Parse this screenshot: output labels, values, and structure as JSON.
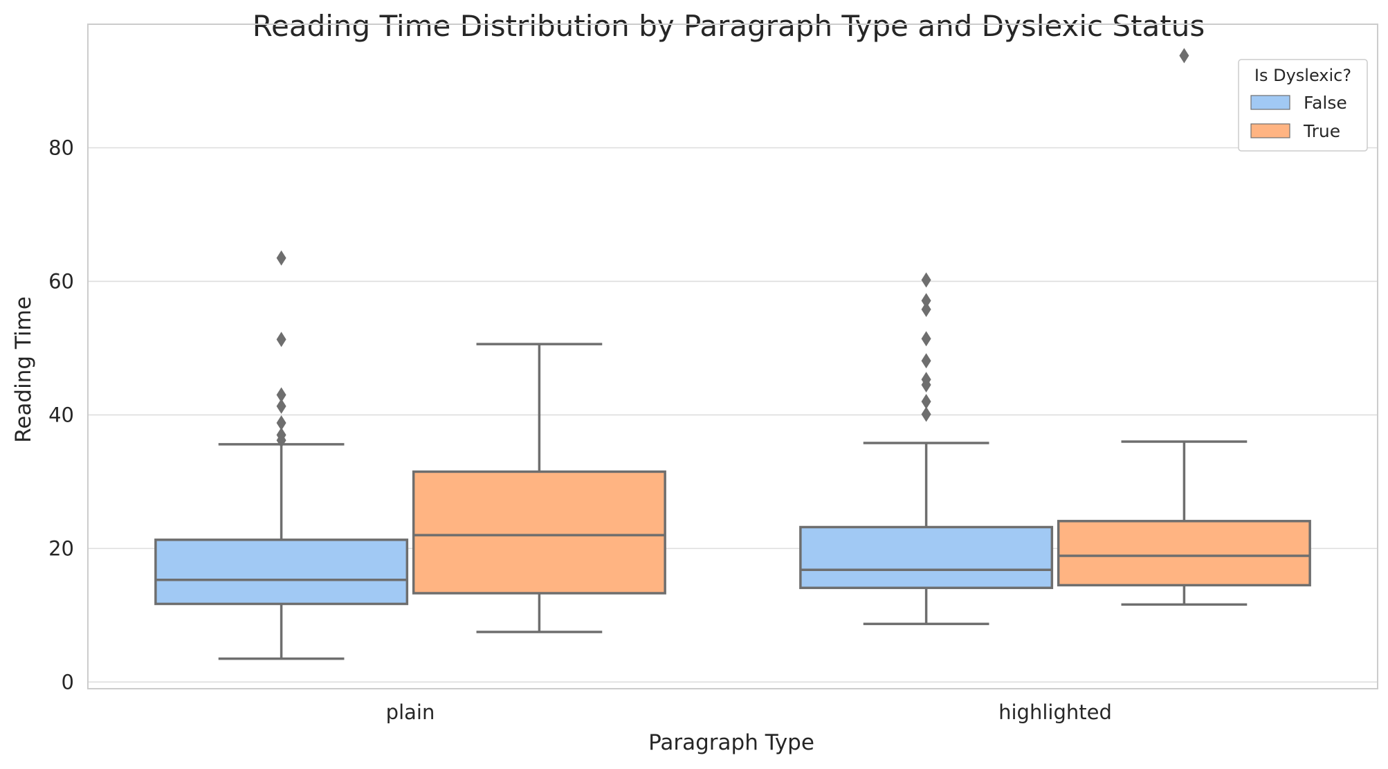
{
  "chart_data": {
    "type": "box",
    "title": "Reading Time Distribution by Paragraph Type and Dyslexic Status",
    "xlabel": "Paragraph Type",
    "ylabel": "Reading Time",
    "categories": [
      "plain",
      "highlighted"
    ],
    "ylim": [
      -1,
      98.5
    ],
    "yticks": [
      0,
      20,
      40,
      60,
      80
    ],
    "grid": true,
    "legend": {
      "title": "Is Dyslexic?",
      "placement": "top-right"
    },
    "series": [
      {
        "name": "False",
        "color": "#a1c9f4",
        "boxes": [
          {
            "category": "plain",
            "whisker_low": 3.5,
            "q1": 11.7,
            "median": 15.3,
            "q3": 21.3,
            "whisker_high": 35.6,
            "outliers": [
              36.2,
              37.0,
              38.8,
              41.3,
              43.0,
              51.3,
              63.5
            ]
          },
          {
            "category": "highlighted",
            "whisker_low": 8.7,
            "q1": 14.1,
            "median": 16.8,
            "q3": 23.2,
            "whisker_high": 35.8,
            "outliers": [
              40.1,
              42.0,
              44.5,
              45.3,
              48.1,
              51.4,
              55.8,
              57.1,
              60.2
            ]
          }
        ]
      },
      {
        "name": "True",
        "color": "#ffb482",
        "boxes": [
          {
            "category": "plain",
            "whisker_low": 7.5,
            "q1": 13.3,
            "median": 22.0,
            "q3": 31.5,
            "whisker_high": 50.6,
            "outliers": []
          },
          {
            "category": "highlighted",
            "whisker_low": 11.6,
            "q1": 14.5,
            "median": 18.9,
            "q3": 24.1,
            "whisker_high": 36.0,
            "outliers": [
              93.8
            ]
          }
        ]
      }
    ]
  }
}
